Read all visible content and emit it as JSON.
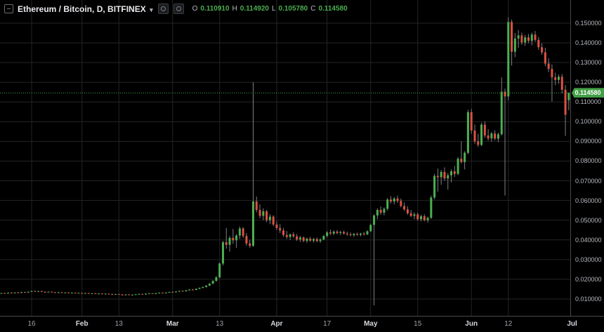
{
  "title_bar": {
    "symbol": "Ethereum / Bitcoin,",
    "interval": "D,",
    "exchange": "BITFINEX",
    "caret": "▾",
    "ohlc": {
      "o_label": "O",
      "o_value": "0.110910",
      "h_label": "H",
      "h_value": "0.114920",
      "l_label": "L",
      "l_value": "0.105780",
      "c_label": "C",
      "c_value": "0.114580"
    }
  },
  "price_axis": {
    "last_price_label": "0.114580"
  },
  "colors": {
    "background": "#000000",
    "grid": "#242424",
    "up_candle": "#4caf50",
    "down_candle": "#dd5142",
    "wick": "#7d7f83",
    "axis_text": "#b6b9c0",
    "price_line": "#4caf50",
    "price_tag_bg": "#43a047",
    "axis_border": "#46484e"
  },
  "chart_data": {
    "type": "candlestick",
    "title": "Ethereum / Bitcoin, D, BITFINEX",
    "interval": "D",
    "grid": true,
    "last_price": 0.11458,
    "ohlc_readout": {
      "open": 0.11091,
      "high": 0.11492,
      "low": 0.10578,
      "close": 0.11458
    },
    "y_ticks": [
      0.15,
      0.14,
      0.13,
      0.12,
      0.11,
      0.1,
      0.09,
      0.08,
      0.07,
      0.06,
      0.05,
      0.04,
      0.03,
      0.02,
      0.01
    ],
    "y_range": [
      0.0015,
      0.1547
    ],
    "x_ticks": [
      {
        "label": "16",
        "i": 9,
        "month": false
      },
      {
        "label": "Feb",
        "i": 24,
        "month": true
      },
      {
        "label": "13",
        "i": 35,
        "month": false
      },
      {
        "label": "Mar",
        "i": 51,
        "month": true
      },
      {
        "label": "13",
        "i": 65,
        "month": false
      },
      {
        "label": "Apr",
        "i": 82,
        "month": true
      },
      {
        "label": "17",
        "i": 97,
        "month": false
      },
      {
        "label": "May",
        "i": 110,
        "month": true
      },
      {
        "label": "15",
        "i": 124,
        "month": false
      },
      {
        "label": "Jun",
        "i": 140,
        "month": true
      },
      {
        "label": "12",
        "i": 151,
        "month": false
      },
      {
        "label": "Jul",
        "i": 170,
        "month": true
      }
    ],
    "candles": [
      [
        0.0128,
        0.0131,
        0.0126,
        0.013
      ],
      [
        0.013,
        0.0132,
        0.0127,
        0.0128
      ],
      [
        0.0128,
        0.0133,
        0.0127,
        0.0132
      ],
      [
        0.0132,
        0.0134,
        0.0129,
        0.013
      ],
      [
        0.013,
        0.0134,
        0.0128,
        0.0133
      ],
      [
        0.0133,
        0.0135,
        0.013,
        0.0131
      ],
      [
        0.0131,
        0.0136,
        0.013,
        0.0135
      ],
      [
        0.0135,
        0.0137,
        0.0132,
        0.0133
      ],
      [
        0.0133,
        0.0138,
        0.0131,
        0.0137
      ],
      [
        0.0137,
        0.0142,
        0.0135,
        0.0141
      ],
      [
        0.0141,
        0.0143,
        0.0137,
        0.0138
      ],
      [
        0.0138,
        0.0141,
        0.0135,
        0.014
      ],
      [
        0.014,
        0.0141,
        0.0135,
        0.0136
      ],
      [
        0.0136,
        0.0139,
        0.0133,
        0.0134
      ],
      [
        0.0134,
        0.0138,
        0.0133,
        0.0137
      ],
      [
        0.0137,
        0.0138,
        0.0133,
        0.0134
      ],
      [
        0.0134,
        0.0136,
        0.0131,
        0.0132
      ],
      [
        0.0132,
        0.0135,
        0.013,
        0.0134
      ],
      [
        0.0134,
        0.0135,
        0.013,
        0.0131
      ],
      [
        0.0131,
        0.0134,
        0.0129,
        0.0133
      ],
      [
        0.0133,
        0.0134,
        0.0129,
        0.013
      ],
      [
        0.013,
        0.0133,
        0.0128,
        0.0132
      ],
      [
        0.0132,
        0.0133,
        0.0128,
        0.0129
      ],
      [
        0.0129,
        0.0132,
        0.0127,
        0.0131
      ],
      [
        0.0131,
        0.0132,
        0.0127,
        0.0128
      ],
      [
        0.0128,
        0.0131,
        0.0126,
        0.013
      ],
      [
        0.013,
        0.0131,
        0.0126,
        0.0127
      ],
      [
        0.0127,
        0.013,
        0.0125,
        0.0129
      ],
      [
        0.0129,
        0.013,
        0.0125,
        0.0126
      ],
      [
        0.0126,
        0.0129,
        0.0124,
        0.0128
      ],
      [
        0.0128,
        0.0129,
        0.0124,
        0.0125
      ],
      [
        0.0125,
        0.0128,
        0.0123,
        0.0127
      ],
      [
        0.0127,
        0.0128,
        0.0123,
        0.0124
      ],
      [
        0.0124,
        0.0127,
        0.0122,
        0.0123
      ],
      [
        0.0123,
        0.0126,
        0.0121,
        0.0125
      ],
      [
        0.0125,
        0.0126,
        0.0121,
        0.0122
      ],
      [
        0.0122,
        0.0125,
        0.0119,
        0.0121
      ],
      [
        0.0121,
        0.0124,
        0.0118,
        0.0123
      ],
      [
        0.0123,
        0.0124,
        0.0119,
        0.012
      ],
      [
        0.012,
        0.0123,
        0.0118,
        0.0122
      ],
      [
        0.0122,
        0.0125,
        0.012,
        0.0124
      ],
      [
        0.0124,
        0.0127,
        0.0122,
        0.0126
      ],
      [
        0.0126,
        0.0127,
        0.0122,
        0.0123
      ],
      [
        0.0123,
        0.0128,
        0.0122,
        0.0127
      ],
      [
        0.0127,
        0.013,
        0.0125,
        0.0129
      ],
      [
        0.0129,
        0.013,
        0.0125,
        0.0126
      ],
      [
        0.0126,
        0.0131,
        0.0125,
        0.013
      ],
      [
        0.013,
        0.0133,
        0.0128,
        0.0132
      ],
      [
        0.0132,
        0.0133,
        0.0128,
        0.0129
      ],
      [
        0.0129,
        0.0134,
        0.0128,
        0.0133
      ],
      [
        0.0133,
        0.0137,
        0.0131,
        0.0136
      ],
      [
        0.0136,
        0.0138,
        0.0132,
        0.0134
      ],
      [
        0.0134,
        0.0139,
        0.0133,
        0.0138
      ],
      [
        0.0138,
        0.0142,
        0.0136,
        0.0141
      ],
      [
        0.0141,
        0.0143,
        0.0137,
        0.0139
      ],
      [
        0.0139,
        0.0145,
        0.0138,
        0.0144
      ],
      [
        0.0144,
        0.0149,
        0.0142,
        0.0148
      ],
      [
        0.0148,
        0.0151,
        0.0144,
        0.0146
      ],
      [
        0.0146,
        0.0153,
        0.0145,
        0.0152
      ],
      [
        0.0152,
        0.0158,
        0.015,
        0.0157
      ],
      [
        0.0157,
        0.0163,
        0.0154,
        0.0161
      ],
      [
        0.0161,
        0.017,
        0.0159,
        0.0168
      ],
      [
        0.0168,
        0.018,
        0.0166,
        0.0178
      ],
      [
        0.0178,
        0.0195,
        0.0175,
        0.0192
      ],
      [
        0.0192,
        0.0215,
        0.0188,
        0.021
      ],
      [
        0.021,
        0.0285,
        0.0205,
        0.028
      ],
      [
        0.028,
        0.0395,
        0.027,
        0.0388
      ],
      [
        0.0388,
        0.046,
        0.0355,
        0.0375
      ],
      [
        0.0375,
        0.042,
        0.034,
        0.041
      ],
      [
        0.041,
        0.0455,
        0.038,
        0.0398
      ],
      [
        0.0398,
        0.043,
        0.036,
        0.0422
      ],
      [
        0.0422,
        0.0468,
        0.0405,
        0.0458
      ],
      [
        0.0458,
        0.0465,
        0.041,
        0.042
      ],
      [
        0.042,
        0.0435,
        0.037,
        0.0382
      ],
      [
        0.0382,
        0.04,
        0.036,
        0.037
      ],
      [
        0.037,
        0.12,
        0.0365,
        0.0595
      ],
      [
        0.0595,
        0.062,
        0.054,
        0.0552
      ],
      [
        0.0552,
        0.058,
        0.051,
        0.0522
      ],
      [
        0.0522,
        0.056,
        0.05,
        0.0545
      ],
      [
        0.0545,
        0.0552,
        0.049,
        0.05
      ],
      [
        0.05,
        0.053,
        0.048,
        0.0518
      ],
      [
        0.0518,
        0.0525,
        0.047,
        0.0478
      ],
      [
        0.0478,
        0.0495,
        0.045,
        0.046
      ],
      [
        0.046,
        0.048,
        0.0435,
        0.0448
      ],
      [
        0.0448,
        0.046,
        0.0415,
        0.0425
      ],
      [
        0.0425,
        0.0445,
        0.0405,
        0.0415
      ],
      [
        0.0415,
        0.0432,
        0.04,
        0.0428
      ],
      [
        0.0428,
        0.044,
        0.041,
        0.0418
      ],
      [
        0.0418,
        0.043,
        0.0395,
        0.0402
      ],
      [
        0.0402,
        0.042,
        0.039,
        0.0412
      ],
      [
        0.0412,
        0.0418,
        0.0388,
        0.0395
      ],
      [
        0.0395,
        0.0412,
        0.0385,
        0.0406
      ],
      [
        0.0406,
        0.0415,
        0.039,
        0.0396
      ],
      [
        0.0396,
        0.041,
        0.0386,
        0.0404
      ],
      [
        0.0404,
        0.0412,
        0.0388,
        0.0394
      ],
      [
        0.0394,
        0.0408,
        0.0385,
        0.0402
      ],
      [
        0.0402,
        0.0425,
        0.0398,
        0.042
      ],
      [
        0.042,
        0.0445,
        0.0412,
        0.0438
      ],
      [
        0.0438,
        0.0452,
        0.0425,
        0.0432
      ],
      [
        0.0432,
        0.0448,
        0.0424,
        0.0442
      ],
      [
        0.0442,
        0.045,
        0.0428,
        0.0435
      ],
      [
        0.0435,
        0.0446,
        0.0425,
        0.044
      ],
      [
        0.044,
        0.0447,
        0.0427,
        0.0432
      ],
      [
        0.0432,
        0.0442,
        0.0422,
        0.0428
      ],
      [
        0.0428,
        0.0438,
        0.0418,
        0.0424
      ],
      [
        0.0424,
        0.0435,
        0.0416,
        0.043
      ],
      [
        0.043,
        0.0437,
        0.042,
        0.0426
      ],
      [
        0.0426,
        0.0436,
        0.0418,
        0.0432
      ],
      [
        0.0432,
        0.044,
        0.0422,
        0.0428
      ],
      [
        0.0428,
        0.0448,
        0.0424,
        0.0444
      ],
      [
        0.0444,
        0.0482,
        0.044,
        0.0476
      ],
      [
        0.0476,
        0.053,
        0.0068,
        0.0524
      ],
      [
        0.0524,
        0.056,
        0.0505,
        0.0552
      ],
      [
        0.0552,
        0.057,
        0.0528,
        0.0538
      ],
      [
        0.0538,
        0.0565,
        0.0525,
        0.0558
      ],
      [
        0.0558,
        0.0612,
        0.0548,
        0.0605
      ],
      [
        0.0605,
        0.0622,
        0.0585,
        0.0595
      ],
      [
        0.0595,
        0.0618,
        0.058,
        0.061
      ],
      [
        0.061,
        0.0625,
        0.0588,
        0.0598
      ],
      [
        0.0598,
        0.061,
        0.0565,
        0.0572
      ],
      [
        0.0572,
        0.059,
        0.0548,
        0.0555
      ],
      [
        0.0555,
        0.057,
        0.0528,
        0.0535
      ],
      [
        0.0535,
        0.0552,
        0.0515,
        0.0522
      ],
      [
        0.0522,
        0.054,
        0.0505,
        0.053
      ],
      [
        0.053,
        0.0538,
        0.0498,
        0.0505
      ],
      [
        0.0505,
        0.0528,
        0.0495,
        0.052
      ],
      [
        0.052,
        0.053,
        0.0494,
        0.05
      ],
      [
        0.05,
        0.0518,
        0.0488,
        0.0512
      ],
      [
        0.0512,
        0.0625,
        0.0506,
        0.0615
      ],
      [
        0.0615,
        0.0735,
        0.0605,
        0.0725
      ],
      [
        0.0725,
        0.0762,
        0.0645,
        0.0718
      ],
      [
        0.0718,
        0.0755,
        0.068,
        0.0745
      ],
      [
        0.0745,
        0.0768,
        0.07,
        0.0712
      ],
      [
        0.0712,
        0.074,
        0.0655,
        0.0728
      ],
      [
        0.0728,
        0.0758,
        0.0692,
        0.0748
      ],
      [
        0.0748,
        0.0775,
        0.072,
        0.0735
      ],
      [
        0.0735,
        0.082,
        0.0728,
        0.0812
      ],
      [
        0.0812,
        0.09,
        0.0788,
        0.0795
      ],
      [
        0.0795,
        0.085,
        0.0758,
        0.0842
      ],
      [
        0.0842,
        0.106,
        0.0835,
        0.1048
      ],
      [
        0.1048,
        0.1065,
        0.0938,
        0.0955
      ],
      [
        0.0955,
        0.0985,
        0.0888,
        0.09
      ],
      [
        0.09,
        0.0938,
        0.0872,
        0.0882
      ],
      [
        0.0882,
        0.0995,
        0.0876,
        0.0985
      ],
      [
        0.0985,
        0.1002,
        0.0918,
        0.093
      ],
      [
        0.093,
        0.0962,
        0.0904,
        0.0915
      ],
      [
        0.0915,
        0.0948,
        0.0898,
        0.094
      ],
      [
        0.094,
        0.0956,
        0.0906,
        0.0914
      ],
      [
        0.0914,
        0.0944,
        0.0896,
        0.0936
      ],
      [
        0.0936,
        0.1225,
        0.093,
        0.1152
      ],
      [
        0.1152,
        0.1168,
        0.0625,
        0.1128
      ],
      [
        0.1128,
        0.153,
        0.1108,
        0.1506
      ],
      [
        0.1506,
        0.1518,
        0.1285,
        0.1355
      ],
      [
        0.1355,
        0.145,
        0.1328,
        0.1422
      ],
      [
        0.1422,
        0.1465,
        0.1375,
        0.1438
      ],
      [
        0.1438,
        0.1452,
        0.139,
        0.1402
      ],
      [
        0.1402,
        0.144,
        0.1385,
        0.1428
      ],
      [
        0.1428,
        0.1445,
        0.1398,
        0.141
      ],
      [
        0.141,
        0.1452,
        0.1388,
        0.1442
      ],
      [
        0.1442,
        0.146,
        0.1405,
        0.1415
      ],
      [
        0.1415,
        0.143,
        0.1365,
        0.1378
      ],
      [
        0.1378,
        0.1398,
        0.134,
        0.1352
      ],
      [
        0.1352,
        0.1375,
        0.1282,
        0.1295
      ],
      [
        0.1295,
        0.1322,
        0.1252,
        0.1268
      ],
      [
        0.1268,
        0.129,
        0.1102,
        0.1225
      ],
      [
        0.1225,
        0.1248,
        0.1185,
        0.1212
      ],
      [
        0.1212,
        0.124,
        0.1192,
        0.1228
      ],
      [
        0.1228,
        0.1242,
        0.1145,
        0.1162
      ],
      [
        0.1162,
        0.1185,
        0.0928,
        0.1035
      ],
      [
        0.1109,
        0.1149,
        0.1058,
        0.1146
      ]
    ]
  }
}
